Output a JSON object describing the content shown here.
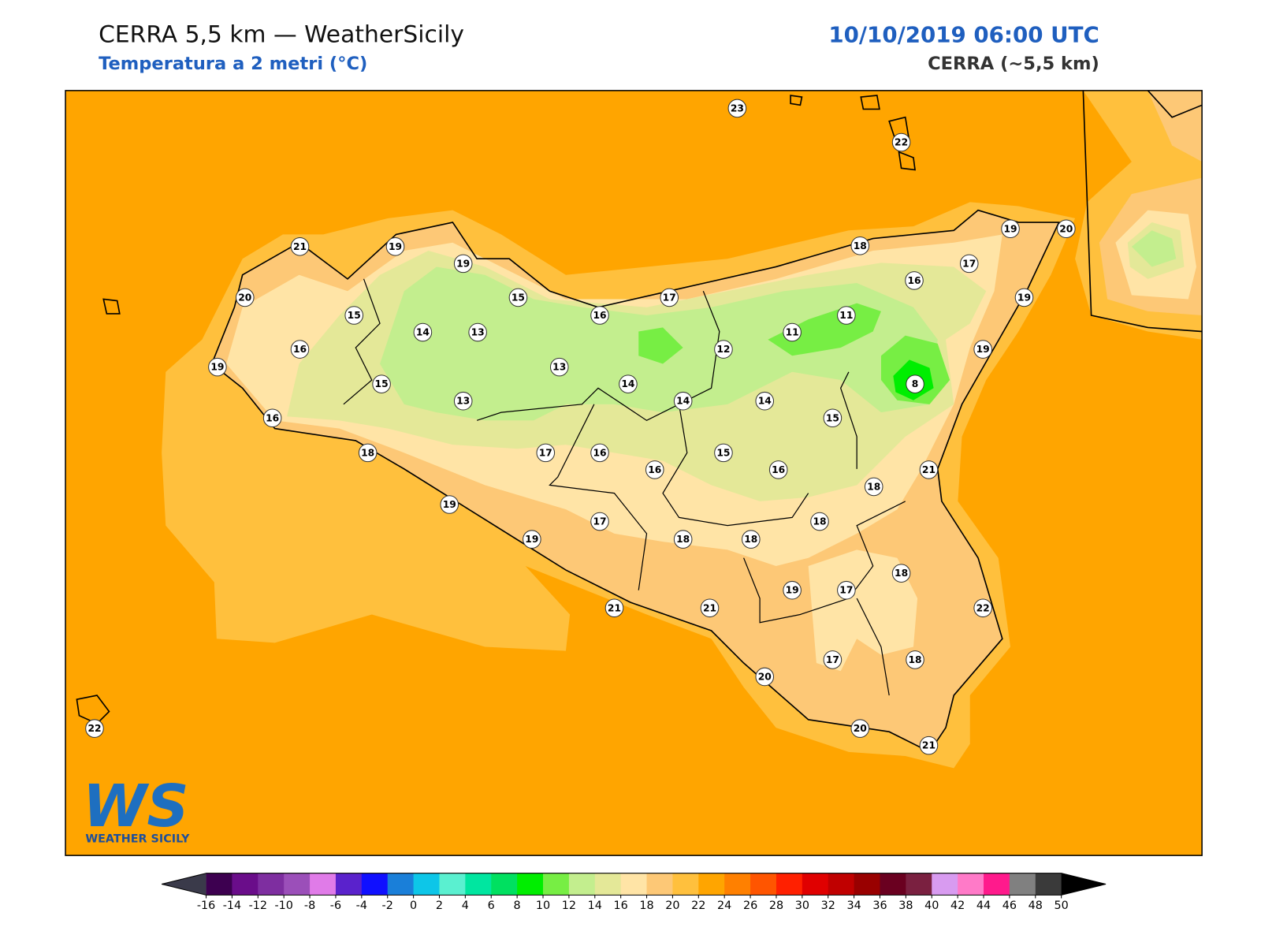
{
  "header": {
    "title": "CERRA 5,5 km — WeatherSicily",
    "subtitle": "Temperatura a 2 metri (°C)",
    "datetime": "10/10/2019 06:00 UTC",
    "model": "CERRA (~5,5 km)"
  },
  "logo": {
    "mark": "WS",
    "name": "WEATHER SICILY"
  },
  "stations": [
    23,
    22,
    21,
    19,
    19,
    18,
    19,
    20,
    17,
    16,
    20,
    15,
    15,
    16,
    17,
    19,
    14,
    13,
    11,
    11,
    16,
    12,
    19,
    19,
    13,
    15,
    14,
    8,
    13,
    14,
    14,
    16,
    15,
    18,
    17,
    16,
    15,
    16,
    16,
    21,
    18,
    19,
    17,
    18,
    19,
    18,
    18,
    18,
    19,
    17,
    21,
    21,
    22,
    17,
    18,
    20,
    20,
    21,
    22
  ],
  "colorbar": {
    "lim": [
      -16,
      50
    ],
    "ticks": [
      -16,
      -14,
      -12,
      -10,
      -8,
      -6,
      -4,
      -2,
      0,
      2,
      4,
      6,
      8,
      10,
      12,
      14,
      16,
      18,
      20,
      22,
      24,
      26,
      28,
      30,
      32,
      34,
      36,
      38,
      40,
      42,
      44,
      46,
      48,
      50
    ],
    "colors": [
      "#3d0050",
      "#6a0d8a",
      "#7e2ea0",
      "#9b4fb9",
      "#e07be8",
      "#5a22cc",
      "#1010ff",
      "#1a7fd9",
      "#0dc6e8",
      "#5af0d0",
      "#00e6a0",
      "#00e060",
      "#00ee00",
      "#77ee44",
      "#c3ee8e",
      "#e4e898",
      "#ffe4a6",
      "#fdc876",
      "#ffc03d",
      "#ffa500",
      "#ff8000",
      "#ff5500",
      "#ff2000",
      "#e00000",
      "#c00000",
      "#990000",
      "#6a0020",
      "#7a2040",
      "#d89bf0",
      "#ff7ac8",
      "#ff1a8c",
      "#808080",
      "#3a3a3a"
    ],
    "under": "#3a3a4a",
    "over": "#000000"
  }
}
